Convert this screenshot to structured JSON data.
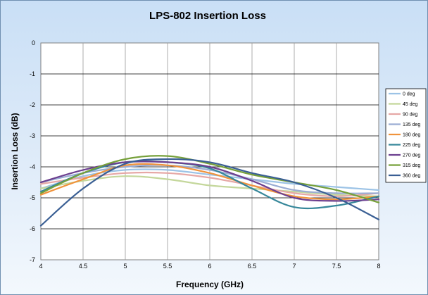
{
  "chart_data": {
    "type": "line",
    "title": "LPS-802  Insertion Loss",
    "xlabel": "Frequency  (GHz)",
    "ylabel": "Insertion Loss (dB)",
    "xlim": [
      4,
      8
    ],
    "ylim": [
      -7,
      0
    ],
    "xticks": [
      4,
      4.5,
      5,
      5.5,
      6,
      6.5,
      7,
      7.5,
      8
    ],
    "xtick_labels": [
      "4",
      "4.5",
      "5",
      "5.5",
      "6",
      "6.5",
      "7",
      "7.5",
      "8"
    ],
    "yticks": [
      0,
      -1,
      -2,
      -3,
      -4,
      -5,
      -6,
      -7
    ],
    "ytick_labels": [
      "0",
      "-1",
      "-2",
      "-3",
      "-4",
      "-5",
      "-6",
      "-7"
    ],
    "grid": true,
    "legend_position": "right",
    "series": [
      {
        "name": "0 deg",
        "color": "#9cc3e6",
        "x": [
          4,
          4.5,
          5,
          5.5,
          6,
          6.5,
          7,
          7.5,
          8
        ],
        "y": [
          -4.7,
          -4.3,
          -4.1,
          -4.1,
          -4.25,
          -4.4,
          -4.55,
          -4.65,
          -4.75
        ]
      },
      {
        "name": "45 deg",
        "color": "#c4d79b",
        "x": [
          4,
          4.5,
          5,
          5.5,
          6,
          6.5,
          7,
          7.5,
          8
        ],
        "y": [
          -4.7,
          -4.45,
          -4.3,
          -4.4,
          -4.6,
          -4.7,
          -4.8,
          -4.9,
          -4.95
        ]
      },
      {
        "name": "90 deg",
        "color": "#e6a8a6",
        "x": [
          4,
          4.5,
          5,
          5.5,
          6,
          6.5,
          7,
          7.5,
          8
        ],
        "y": [
          -4.55,
          -4.35,
          -4.2,
          -4.2,
          -4.35,
          -4.6,
          -4.85,
          -4.95,
          -4.85
        ]
      },
      {
        "name": "135 deg",
        "color": "#9aadd4",
        "x": [
          4,
          4.5,
          5,
          5.5,
          6,
          6.5,
          7,
          7.5,
          8
        ],
        "y": [
          -4.5,
          -4.2,
          -4.0,
          -3.95,
          -4.1,
          -4.4,
          -4.75,
          -4.85,
          -4.85
        ]
      },
      {
        "name": "180 deg",
        "color": "#f0933c",
        "x": [
          4,
          4.5,
          5,
          5.5,
          6,
          6.5,
          7,
          7.5,
          8
        ],
        "y": [
          -4.9,
          -4.4,
          -3.95,
          -3.95,
          -4.2,
          -4.6,
          -4.95,
          -5.05,
          -4.95
        ]
      },
      {
        "name": "225 deg",
        "color": "#36879a",
        "x": [
          4,
          4.5,
          5,
          5.5,
          6,
          6.5,
          7,
          7.5,
          8
        ],
        "y": [
          -4.8,
          -4.2,
          -3.85,
          -3.85,
          -4.05,
          -4.7,
          -5.3,
          -5.25,
          -4.95
        ]
      },
      {
        "name": "270 deg",
        "color": "#6c3f8f",
        "x": [
          4,
          4.5,
          5,
          5.5,
          6,
          6.5,
          7,
          7.5,
          8
        ],
        "y": [
          -4.5,
          -4.1,
          -3.85,
          -3.85,
          -4.0,
          -4.45,
          -5.0,
          -5.1,
          -5.05
        ]
      },
      {
        "name": "315 deg",
        "color": "#76a03a",
        "x": [
          4,
          4.5,
          5,
          5.5,
          6,
          6.5,
          7,
          7.5,
          8
        ],
        "y": [
          -4.85,
          -4.2,
          -3.75,
          -3.65,
          -3.9,
          -4.25,
          -4.5,
          -4.75,
          -5.15
        ]
      },
      {
        "name": "360 deg",
        "color": "#3a5f94",
        "x": [
          4,
          4.5,
          5,
          5.5,
          6,
          6.5,
          7,
          7.5,
          8
        ],
        "y": [
          -5.9,
          -4.7,
          -3.9,
          -3.75,
          -3.85,
          -4.2,
          -4.5,
          -5.0,
          -5.7
        ]
      }
    ]
  }
}
